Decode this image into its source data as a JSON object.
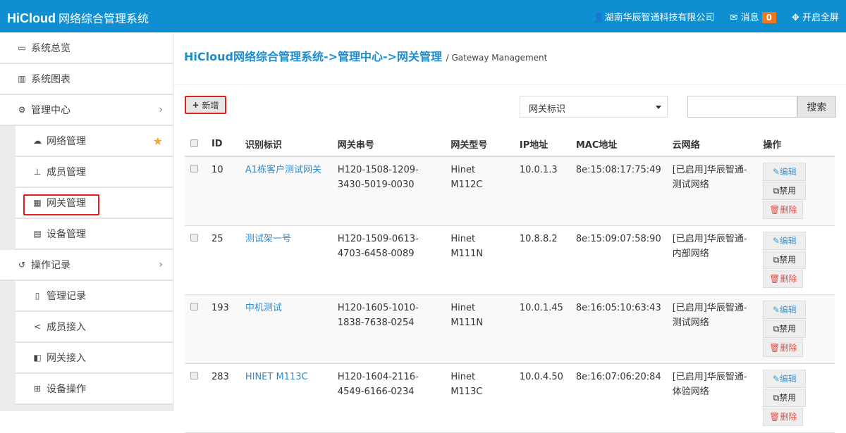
{
  "header": {
    "brand": "HiCloud",
    "title": "网络综合管理系统",
    "company": "湖南华辰智通科技有限公司",
    "messages_label": "消息",
    "messages_count": "0",
    "fullscreen_label": "开启全屏"
  },
  "sidebar": {
    "items": [
      {
        "label": "系统总览",
        "icon": "desktop-icon",
        "sub": false
      },
      {
        "label": "系统图表",
        "icon": "bar-chart-icon",
        "sub": false
      },
      {
        "label": "管理中心",
        "icon": "gears-icon",
        "sub": false,
        "chevron": true
      },
      {
        "label": "网络管理",
        "icon": "cloud-icon",
        "sub": true,
        "star": true
      },
      {
        "label": "成员管理",
        "icon": "sitemap-icon",
        "sub": true
      },
      {
        "label": "网关管理",
        "icon": "grid-icon",
        "sub": true,
        "active": true
      },
      {
        "label": "设备管理",
        "icon": "calendar-icon",
        "sub": true
      },
      {
        "label": "操作记录",
        "icon": "history-icon",
        "sub": false,
        "chevron": true
      },
      {
        "label": "管理记录",
        "icon": "file-icon",
        "sub": true
      },
      {
        "label": "成员接入",
        "icon": "share-icon",
        "sub": true
      },
      {
        "label": "网关接入",
        "icon": "share-square-icon",
        "sub": true
      },
      {
        "label": "设备操作",
        "icon": "plus-square-icon",
        "sub": true
      }
    ]
  },
  "main": {
    "breadcrumb": "HiCloud网络综合管理系统->管理中心->网关管理",
    "breadcrumb_sub": "/ Gateway Management",
    "add_label": "新增",
    "filter_value": "网关标识",
    "search_value": "",
    "search_label": "搜索",
    "columns": [
      "ID",
      "识别标识",
      "网关串号",
      "网关型号",
      "IP地址",
      "MAC地址",
      "云网络",
      "操作"
    ],
    "actions": {
      "edit": "编辑",
      "disable": "禁用",
      "delete": "删除"
    },
    "rows": [
      {
        "id": "10",
        "name": "A1栋客户测试网关",
        "serial": "H120-1508-1209-3430-5019-0030",
        "model": "Hinet M112C",
        "ip": "10.0.1.3",
        "mac": "8e:15:08:17:75:49",
        "cloud": "[已启用]华辰智通-测试网络"
      },
      {
        "id": "25",
        "name": "测试架一号",
        "serial": "H120-1509-0613-4703-6458-0089",
        "model": "Hinet M111N",
        "ip": "10.8.8.2",
        "mac": "8e:15:09:07:58:90",
        "cloud": "[已启用]华辰智通-内部网络"
      },
      {
        "id": "193",
        "name": "中机测试",
        "serial": "H120-1605-1010-1838-7638-0254",
        "model": "Hinet M111N",
        "ip": "10.0.1.45",
        "mac": "8e:16:05:10:63:43",
        "cloud": "[已启用]华辰智通-测试网络"
      },
      {
        "id": "283",
        "name": "HINET M113C",
        "serial": "H120-1604-2116-4549-6166-0234",
        "model": "Hinet M113C",
        "ip": "10.0.4.50",
        "mac": "8e:16:07:06:20:84",
        "cloud": "[已启用]华辰智通-体验网络"
      }
    ]
  },
  "colors": {
    "header": "#0f8fd1",
    "badge": "#f0781b",
    "link": "#2a8ed6",
    "highlight": "#e02020"
  }
}
